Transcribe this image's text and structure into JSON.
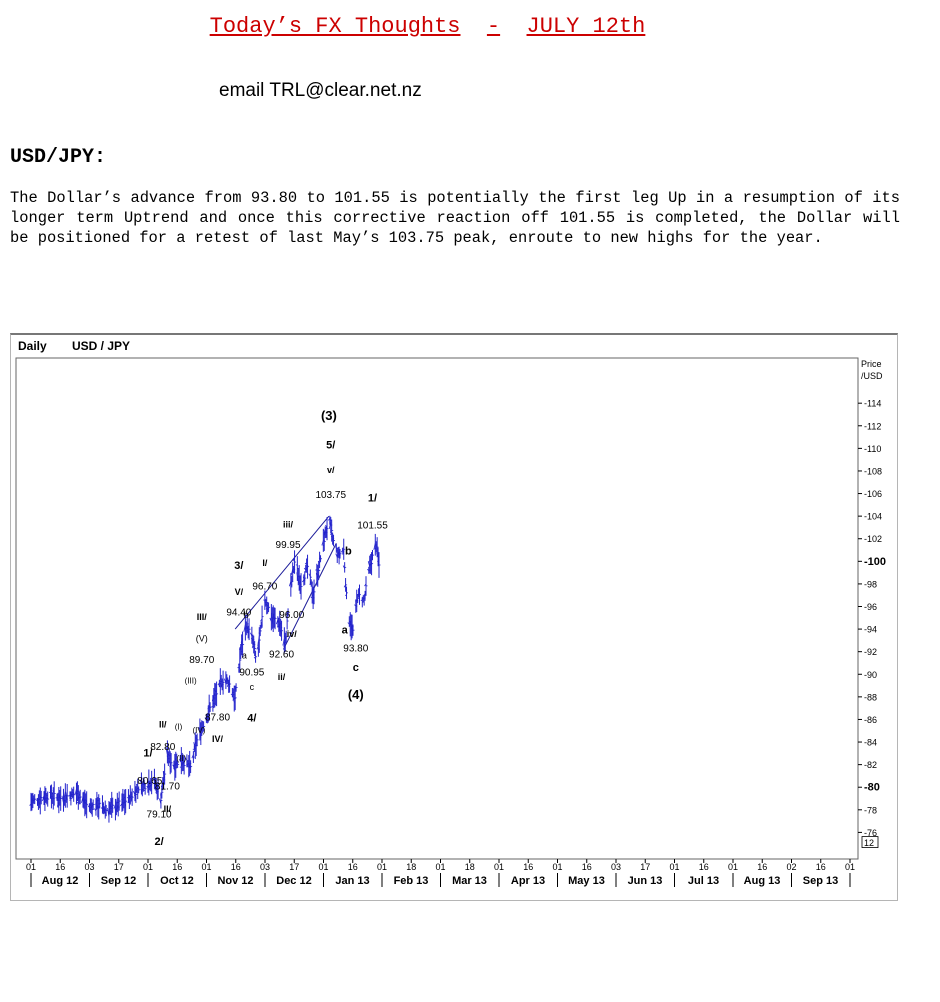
{
  "header": {
    "title_left": "Today’s FX Thoughts",
    "title_sep": "-",
    "title_right": "JULY 12th",
    "email": "email TRL@clear.net.nz"
  },
  "section": {
    "heading": "USD/JPY:",
    "commentary": "The Dollar’s advance from 93.80 to 101.55 is potentially the first leg Up in a resumption of its longer term Uptrend and once this corrective reaction off 101.55 is completed, the Dollar will be positioned for a retest of last May’s 103.75 peak, enroute to new highs for the year."
  },
  "chart_data": {
    "type": "line",
    "frequency": "Daily",
    "symbol": "USD / JPY",
    "ylabel": "Price /USD",
    "ylim": [
      75,
      116
    ],
    "yticks": [
      76,
      78,
      80,
      82,
      84,
      86,
      88,
      90,
      92,
      94,
      96,
      98,
      100,
      102,
      104,
      106,
      108,
      110,
      112,
      114
    ],
    "ytick_bold": [
      80,
      100
    ],
    "last_price_tag": "12",
    "x_day_ticks": [
      "01",
      "16",
      "03",
      "17",
      "01",
      "16",
      "01",
      "16",
      "03",
      "17",
      "01",
      "16",
      "01",
      "18",
      "01",
      "18",
      "01",
      "16",
      "01",
      "16",
      "03",
      "17",
      "01",
      "16",
      "01",
      "16",
      "02",
      "16",
      "01"
    ],
    "x_months": [
      "Aug 12",
      "Sep 12",
      "Oct 12",
      "Nov 12",
      "Dec 12",
      "Jan 13",
      "Feb 13",
      "Mar 13",
      "Apr 13",
      "May 13",
      "Jun 13",
      "Jul 13",
      "Aug 13",
      "Sep 13"
    ],
    "series": [
      {
        "x": [
          "2012-07-01",
          "2012-07-20",
          "2012-08-01",
          "2012-08-20",
          "2012-09-01",
          "2012-09-10",
          "2012-09-20",
          "2012-10-01",
          "2012-10-15",
          "2012-10-25",
          "2012-11-01",
          "2012-11-10",
          "2012-11-18",
          "2012-11-25",
          "2012-12-01",
          "2012-12-10",
          "2012-12-20",
          "2012-12-28",
          "2013-01-05",
          "2013-01-15",
          "2013-01-25",
          "2013-02-01",
          "2013-02-06",
          "2013-02-12",
          "2013-02-18",
          "2013-02-25",
          "2013-03-01",
          "2013-03-10",
          "2013-03-18",
          "2013-03-26",
          "2013-04-01",
          "2013-04-05",
          "2013-04-11",
          "2013-04-18",
          "2013-04-25",
          "2013-05-01",
          "2013-05-06",
          "2013-05-13",
          "2013-05-18",
          "2013-05-22",
          "2013-05-28",
          "2013-06-03",
          "2013-06-07",
          "2013-06-13",
          "2013-06-18",
          "2013-06-25",
          "2013-07-01",
          "2013-07-08",
          "2013-07-12"
        ],
        "y": [
          78.7,
          79.3,
          79.0,
          79.5,
          78.2,
          78.5,
          78.0,
          78.3,
          79.0,
          80.0,
          80.2,
          80.65,
          79.1,
          82.8,
          82.0,
          82.5,
          81.7,
          84.5,
          86.0,
          88.0,
          89.7,
          89.0,
          87.8,
          92.0,
          94.4,
          93.0,
          90.95,
          96.7,
          95.0,
          94.5,
          92.6,
          96.5,
          99.95,
          98.0,
          99.5,
          97.0,
          99.0,
          102.0,
          103.75,
          102.0,
          100.5,
          101.0,
          95.5,
          93.8,
          97.0,
          96.5,
          99.5,
          101.55,
          99.0
        ]
      }
    ],
    "annotations": [
      {
        "text": "(3)",
        "x": "2013-05-18",
        "y": 112.5,
        "bold": true,
        "size": 13
      },
      {
        "text": "5/",
        "x": "2013-05-20",
        "y": 110.0,
        "bold": true,
        "size": 11
      },
      {
        "text": "v/",
        "x": "2013-05-20",
        "y": 107.8,
        "bold": true,
        "size": 9
      },
      {
        "text": "103.75",
        "x": "2013-05-20",
        "y": 105.6,
        "bold": false,
        "size": 10
      },
      {
        "text": "1/",
        "x": "2013-07-04",
        "y": 105.3,
        "bold": true,
        "size": 11
      },
      {
        "text": "101.55",
        "x": "2013-07-04",
        "y": 102.9,
        "bold": false,
        "size": 10
      },
      {
        "text": "b",
        "x": "2013-06-08",
        "y": 100.6,
        "bold": true,
        "size": 11
      },
      {
        "text": "a",
        "x": "2013-06-04",
        "y": 93.6,
        "bold": true,
        "size": 11
      },
      {
        "text": "93.80",
        "x": "2013-06-16",
        "y": 92.0,
        "bold": false,
        "size": 10
      },
      {
        "text": "c",
        "x": "2013-06-16",
        "y": 90.3,
        "bold": true,
        "size": 11
      },
      {
        "text": "(4)",
        "x": "2013-06-16",
        "y": 87.8,
        "bold": true,
        "size": 13
      },
      {
        "text": "iii/",
        "x": "2013-04-04",
        "y": 103.0,
        "bold": true,
        "size": 9
      },
      {
        "text": "99.95",
        "x": "2013-04-04",
        "y": 101.2,
        "bold": false,
        "size": 10
      },
      {
        "text": "96.00",
        "x": "2013-04-08",
        "y": 95.0,
        "bold": false,
        "size": 10
      },
      {
        "text": "iv/",
        "x": "2013-04-08",
        "y": 93.3,
        "bold": true,
        "size": 9
      },
      {
        "text": "92.60",
        "x": "2013-03-28",
        "y": 91.5,
        "bold": false,
        "size": 10
      },
      {
        "text": "ii/",
        "x": "2013-03-28",
        "y": 89.5,
        "bold": true,
        "size": 9
      },
      {
        "text": "I/",
        "x": "2013-03-10",
        "y": 99.6,
        "bold": true,
        "size": 9
      },
      {
        "text": "96.70",
        "x": "2013-03-10",
        "y": 97.5,
        "bold": false,
        "size": 10
      },
      {
        "text": "3/",
        "x": "2013-02-10",
        "y": 99.3,
        "bold": true,
        "size": 11
      },
      {
        "text": "V/",
        "x": "2013-02-10",
        "y": 97.0,
        "bold": true,
        "size": 9
      },
      {
        "text": "94.40",
        "x": "2013-02-10",
        "y": 95.2,
        "bold": false,
        "size": 10
      },
      {
        "text": "b",
        "x": "2013-02-18",
        "y": 95.0,
        "bold": false,
        "size": 9
      },
      {
        "text": "a",
        "x": "2013-02-16",
        "y": 91.4,
        "bold": false,
        "size": 9
      },
      {
        "text": "90.95",
        "x": "2013-02-24",
        "y": 89.9,
        "bold": false,
        "size": 10
      },
      {
        "text": "c",
        "x": "2013-02-24",
        "y": 88.6,
        "bold": false,
        "size": 9
      },
      {
        "text": "4/",
        "x": "2013-02-24",
        "y": 85.8,
        "bold": true,
        "size": 11
      },
      {
        "text": "III/",
        "x": "2013-01-01",
        "y": 94.8,
        "bold": true,
        "size": 9
      },
      {
        "text": "(V)",
        "x": "2013-01-01",
        "y": 92.9,
        "bold": false,
        "size": 9
      },
      {
        "text": "89.70",
        "x": "2013-01-01",
        "y": 91.0,
        "bold": false,
        "size": 10
      },
      {
        "text": "(III)",
        "x": "2012-12-20",
        "y": 89.2,
        "bold": false,
        "size": 8
      },
      {
        "text": "87.80",
        "x": "2013-01-18",
        "y": 85.9,
        "bold": false,
        "size": 10
      },
      {
        "text": "(IV)",
        "x": "2012-12-29",
        "y": 84.8,
        "bold": false,
        "size": 8
      },
      {
        "text": "IV/",
        "x": "2013-01-18",
        "y": 84.0,
        "bold": true,
        "size": 9
      },
      {
        "text": "(I)",
        "x": "2012-12-07",
        "y": 85.1,
        "bold": false,
        "size": 8
      },
      {
        "text": "(II)",
        "x": "2012-12-10",
        "y": 82.3,
        "bold": false,
        "size": 8
      },
      {
        "text": "II/",
        "x": "2012-11-20",
        "y": 85.3,
        "bold": true,
        "size": 9
      },
      {
        "text": "82.80",
        "x": "2012-11-20",
        "y": 83.3,
        "bold": false,
        "size": 10
      },
      {
        "text": "81.70",
        "x": "2012-11-25",
        "y": 79.8,
        "bold": false,
        "size": 10
      },
      {
        "text": "II/",
        "x": "2012-11-25",
        "y": 77.8,
        "bold": true,
        "size": 9
      },
      {
        "text": "1/",
        "x": "2012-11-04",
        "y": 82.7,
        "bold": true,
        "size": 11
      },
      {
        "text": "80.65",
        "x": "2012-11-06",
        "y": 80.3,
        "bold": false,
        "size": 10
      },
      {
        "text": "79.10",
        "x": "2012-11-16",
        "y": 77.3,
        "bold": false,
        "size": 10
      },
      {
        "text": "2/",
        "x": "2012-11-16",
        "y": 74.9,
        "bold": true,
        "size": 11
      }
    ],
    "trendlines": [
      {
        "x1": "2013-02-06",
        "y1": 94.0,
        "x2": "2013-05-18",
        "y2": 104.0
      },
      {
        "x1": "2013-03-30",
        "y1": 92.2,
        "x2": "2013-05-26",
        "y2": 101.6
      }
    ]
  }
}
